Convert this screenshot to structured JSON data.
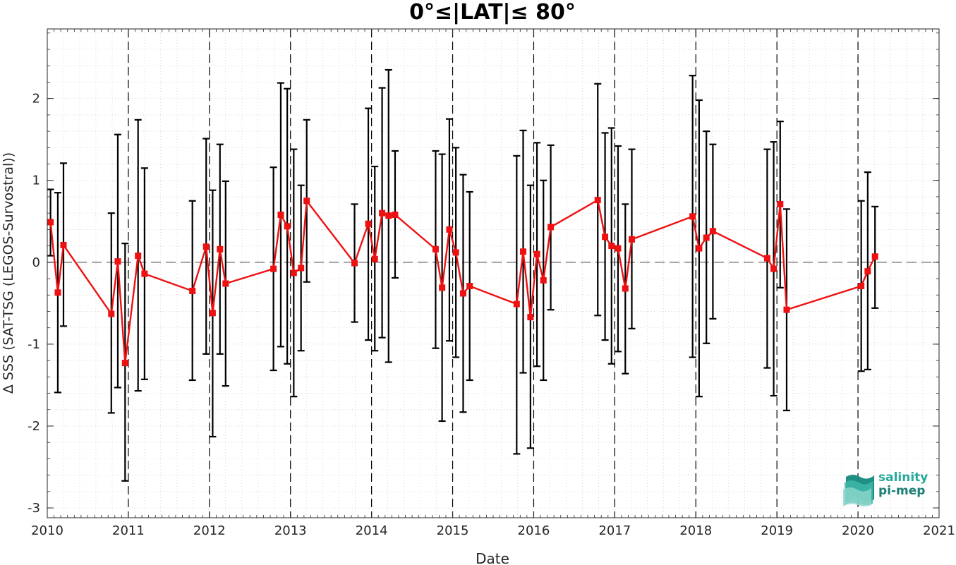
{
  "chart_data": {
    "type": "line",
    "title": "0°≤|LAT|≤ 80°",
    "xlabel": "Date",
    "ylabel": "Δ SSS (SAT-TSG (LEGOS-Survostral))",
    "xlim": [
      2010,
      2021
    ],
    "ylim": [
      -3.12,
      2.85
    ],
    "xticks": [
      2010,
      2011,
      2012,
      2013,
      2014,
      2015,
      2016,
      2017,
      2018,
      2019,
      2020,
      2021
    ],
    "xtick_labels": [
      "2010",
      "2011",
      "2012",
      "2013",
      "2014",
      "2015",
      "2016",
      "2017",
      "2018",
      "2019",
      "2020",
      "2021"
    ],
    "yticks": [
      -3,
      -2,
      -1,
      0,
      1,
      2
    ],
    "ytick_labels": [
      "-3",
      "-2",
      "-1",
      "0",
      "1",
      "2"
    ],
    "grid": true,
    "zero_line": true,
    "year_dividers": [
      2011,
      2012,
      2013,
      2014,
      2015,
      2016,
      2017,
      2018,
      2019,
      2020
    ],
    "colors": {
      "line": "#ee1111",
      "marker": "#ee1111",
      "errorbar": "#000000",
      "grid": "#c8c8c8",
      "divider": "#000000",
      "zero": "#555555"
    },
    "series": [
      {
        "x": [
          2010.04,
          2010.13,
          2010.2,
          2010.79,
          2010.87,
          2010.96,
          2011.12,
          2011.2,
          2011.79,
          2011.96,
          2012.04,
          2012.13,
          2012.2,
          2012.79,
          2012.88,
          2012.96,
          2013.04,
          2013.13,
          2013.2,
          2013.79,
          2013.96,
          2014.04,
          2014.13,
          2014.21,
          2014.29,
          2014.79,
          2014.87,
          2014.96,
          2015.04,
          2015.13,
          2015.21,
          2015.79,
          2015.87,
          2015.96,
          2016.04,
          2016.12,
          2016.21,
          2016.79,
          2016.88,
          2016.96,
          2017.04,
          2017.13,
          2017.21,
          2017.96,
          2018.04,
          2018.13,
          2018.21,
          2018.88,
          2018.96,
          2019.04,
          2019.12,
          2020.04,
          2020.12,
          2020.21
        ],
        "y": [
          0.49,
          -0.37,
          0.21,
          -0.63,
          0.01,
          -1.23,
          0.08,
          -0.14,
          -0.35,
          0.19,
          -0.62,
          0.16,
          -0.26,
          -0.08,
          0.58,
          0.44,
          -0.13,
          -0.07,
          0.75,
          -0.01,
          0.47,
          0.04,
          0.6,
          0.57,
          0.58,
          0.16,
          -0.31,
          0.4,
          0.12,
          -0.38,
          -0.29,
          -0.51,
          0.13,
          -0.67,
          0.1,
          -0.22,
          0.43,
          0.76,
          0.31,
          0.2,
          0.17,
          -0.32,
          0.28,
          0.56,
          0.17,
          0.3,
          0.38,
          0.05,
          -0.08,
          0.71,
          -0.58,
          -0.29,
          -0.11,
          0.07
        ],
        "y_low": [
          0.08,
          -1.59,
          -0.78,
          -1.84,
          -1.53,
          -2.67,
          -1.57,
          -1.43,
          -1.44,
          -1.12,
          -2.13,
          -1.12,
          -1.51,
          -1.32,
          -1.03,
          -1.24,
          -1.64,
          -1.08,
          -0.24,
          -0.73,
          -0.95,
          -1.08,
          -0.92,
          -1.22,
          -0.19,
          -1.05,
          -1.94,
          -0.96,
          -1.16,
          -1.83,
          -1.44,
          -2.34,
          -1.35,
          -2.27,
          -1.27,
          -1.44,
          -0.58,
          -0.65,
          -0.95,
          -1.24,
          -1.09,
          -1.36,
          -0.81,
          -1.16,
          -1.64,
          -0.99,
          -0.69,
          -1.29,
          -1.63,
          -0.31,
          -1.81,
          -1.33,
          -1.31,
          -0.56
        ],
        "y_high": [
          0.89,
          0.85,
          1.21,
          0.6,
          1.56,
          0.23,
          1.74,
          1.15,
          0.75,
          1.51,
          0.88,
          1.44,
          0.99,
          1.16,
          2.19,
          2.12,
          1.38,
          0.94,
          1.74,
          0.71,
          1.88,
          1.17,
          2.13,
          2.35,
          1.36,
          1.36,
          1.32,
          1.75,
          1.4,
          1.07,
          0.86,
          1.3,
          1.61,
          0.94,
          1.46,
          1.0,
          1.43,
          2.18,
          1.58,
          1.64,
          1.42,
          0.71,
          1.38,
          2.28,
          1.98,
          1.6,
          1.44,
          1.38,
          1.47,
          1.72,
          0.65,
          0.75,
          1.1,
          0.68
        ]
      }
    ]
  },
  "logo": {
    "line1": "salinity",
    "line2": "pi-mep"
  }
}
